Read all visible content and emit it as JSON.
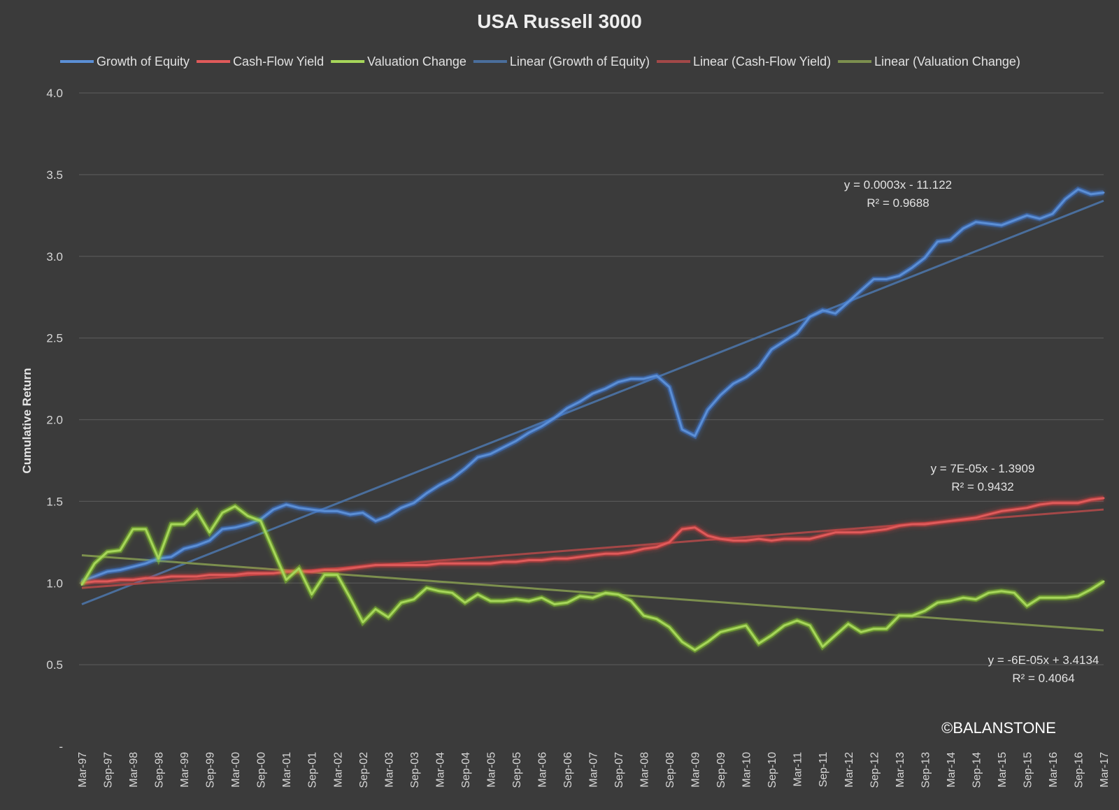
{
  "chart_data": {
    "type": "line",
    "title": "USA Russell 3000",
    "ylabel": "Cumulative Return",
    "xlabel": "",
    "ylim": [
      0,
      4
    ],
    "yticks": [
      {
        "value": 0,
        "label": "-"
      },
      {
        "value": 0.5,
        "label": "0.5"
      },
      {
        "value": 1.0,
        "label": "1.0"
      },
      {
        "value": 1.5,
        "label": "1.5"
      },
      {
        "value": 2.0,
        "label": "2.0"
      },
      {
        "value": 2.5,
        "label": "2.5"
      },
      {
        "value": 3.0,
        "label": "3.0"
      },
      {
        "value": 3.5,
        "label": "3.5"
      },
      {
        "value": 4.0,
        "label": "4.0"
      }
    ],
    "grid": true,
    "legend_position": "top",
    "x_tick_labels": [
      "Mar-97",
      "Sep-97",
      "Mar-98",
      "Sep-98",
      "Mar-99",
      "Sep-99",
      "Mar-00",
      "Sep-00",
      "Mar-01",
      "Sep-01",
      "Mar-02",
      "Sep-02",
      "Mar-03",
      "Sep-03",
      "Mar-04",
      "Sep-04",
      "Mar-05",
      "Sep-05",
      "Mar-06",
      "Sep-06",
      "Mar-07",
      "Sep-07",
      "Mar-08",
      "Sep-08",
      "Mar-09",
      "Sep-09",
      "Mar-10",
      "Sep-10",
      "Mar-11",
      "Sep-11",
      "Mar-12",
      "Sep-12",
      "Mar-13",
      "Sep-13",
      "Mar-14",
      "Sep-14",
      "Mar-15",
      "Sep-15",
      "Mar-16",
      "Sep-16",
      "Mar-17"
    ],
    "x_quarters": [
      "Mar-97",
      "Jun-97",
      "Sep-97",
      "Dec-97",
      "Mar-98",
      "Jun-98",
      "Sep-98",
      "Dec-98",
      "Mar-99",
      "Jun-99",
      "Sep-99",
      "Dec-99",
      "Mar-00",
      "Jun-00",
      "Sep-00",
      "Dec-00",
      "Mar-01",
      "Jun-01",
      "Sep-01",
      "Dec-01",
      "Mar-02",
      "Jun-02",
      "Sep-02",
      "Dec-02",
      "Mar-03",
      "Jun-03",
      "Sep-03",
      "Dec-03",
      "Mar-04",
      "Jun-04",
      "Sep-04",
      "Dec-04",
      "Mar-05",
      "Jun-05",
      "Sep-05",
      "Dec-05",
      "Mar-06",
      "Jun-06",
      "Sep-06",
      "Dec-06",
      "Mar-07",
      "Jun-07",
      "Sep-07",
      "Dec-07",
      "Mar-08",
      "Jun-08",
      "Sep-08",
      "Dec-08",
      "Mar-09",
      "Jun-09",
      "Sep-09",
      "Dec-09",
      "Mar-10",
      "Jun-10",
      "Sep-10",
      "Dec-10",
      "Mar-11",
      "Jun-11",
      "Sep-11",
      "Dec-11",
      "Mar-12",
      "Jun-12",
      "Sep-12",
      "Dec-12",
      "Mar-13",
      "Jun-13",
      "Sep-13",
      "Dec-13",
      "Mar-14",
      "Jun-14",
      "Sep-14",
      "Dec-14",
      "Mar-15",
      "Jun-15",
      "Sep-15",
      "Dec-15",
      "Mar-16",
      "Jun-16",
      "Sep-16",
      "Dec-16",
      "Mar-17"
    ],
    "series": [
      {
        "name": "Growth of Equity",
        "color": "#5b8fd6",
        "glow": "#3f7fe0",
        "values": [
          1.01,
          1.04,
          1.07,
          1.08,
          1.1,
          1.12,
          1.15,
          1.16,
          1.21,
          1.23,
          1.26,
          1.33,
          1.34,
          1.36,
          1.39,
          1.45,
          1.48,
          1.46,
          1.45,
          1.44,
          1.44,
          1.42,
          1.43,
          1.38,
          1.41,
          1.46,
          1.49,
          1.55,
          1.6,
          1.64,
          1.7,
          1.77,
          1.79,
          1.83,
          1.87,
          1.92,
          1.96,
          2.01,
          2.07,
          2.11,
          2.16,
          2.19,
          2.23,
          2.25,
          2.25,
          2.27,
          2.2,
          1.94,
          1.9,
          2.06,
          2.15,
          2.22,
          2.26,
          2.32,
          2.43,
          2.48,
          2.53,
          2.63,
          2.67,
          2.65,
          2.72,
          2.79,
          2.86,
          2.86,
          2.88,
          2.93,
          2.99,
          3.09,
          3.1,
          3.17,
          3.21,
          3.2,
          3.19,
          3.22,
          3.25,
          3.23,
          3.26,
          3.35,
          3.41,
          3.38,
          3.39
        ]
      },
      {
        "name": "Cash-Flow Yield",
        "color": "#e05a5a",
        "glow": "#d43d3d",
        "values": [
          1.0,
          1.01,
          1.01,
          1.02,
          1.02,
          1.03,
          1.03,
          1.04,
          1.04,
          1.04,
          1.05,
          1.05,
          1.05,
          1.06,
          1.06,
          1.06,
          1.07,
          1.07,
          1.07,
          1.08,
          1.08,
          1.09,
          1.1,
          1.11,
          1.11,
          1.11,
          1.11,
          1.11,
          1.12,
          1.12,
          1.12,
          1.12,
          1.12,
          1.13,
          1.13,
          1.14,
          1.14,
          1.15,
          1.15,
          1.16,
          1.17,
          1.18,
          1.18,
          1.19,
          1.21,
          1.22,
          1.25,
          1.33,
          1.34,
          1.29,
          1.27,
          1.26,
          1.26,
          1.27,
          1.26,
          1.27,
          1.27,
          1.27,
          1.29,
          1.31,
          1.31,
          1.31,
          1.32,
          1.33,
          1.35,
          1.36,
          1.36,
          1.37,
          1.38,
          1.39,
          1.4,
          1.42,
          1.44,
          1.45,
          1.46,
          1.48,
          1.49,
          1.49,
          1.49,
          1.51,
          1.52
        ]
      },
      {
        "name": "Valuation Change",
        "color": "#a6d65a",
        "glow": "#8bd02e",
        "values": [
          0.99,
          1.12,
          1.19,
          1.2,
          1.33,
          1.33,
          1.15,
          1.36,
          1.36,
          1.44,
          1.31,
          1.43,
          1.47,
          1.41,
          1.38,
          1.2,
          1.02,
          1.09,
          0.93,
          1.05,
          1.05,
          0.91,
          0.76,
          0.84,
          0.79,
          0.88,
          0.9,
          0.97,
          0.95,
          0.94,
          0.88,
          0.93,
          0.89,
          0.89,
          0.9,
          0.89,
          0.91,
          0.87,
          0.88,
          0.92,
          0.91,
          0.94,
          0.93,
          0.89,
          0.8,
          0.78,
          0.73,
          0.64,
          0.59,
          0.64,
          0.7,
          0.72,
          0.74,
          0.63,
          0.68,
          0.74,
          0.77,
          0.74,
          0.61,
          0.68,
          0.75,
          0.7,
          0.72,
          0.72,
          0.8,
          0.8,
          0.83,
          0.88,
          0.89,
          0.91,
          0.9,
          0.94,
          0.95,
          0.94,
          0.86,
          0.91,
          0.91,
          0.91,
          0.92,
          0.96,
          1.01
        ]
      }
    ],
    "trendlines": [
      {
        "name": "Linear (Growth of Equity)",
        "color": "#4a6e9c",
        "start": 0.87,
        "end": 3.34,
        "equation": "y = 0.0003x - 11.122",
        "r2": "R² = 0.9688"
      },
      {
        "name": "Linear (Cash-Flow Yield)",
        "color": "#a34848",
        "start": 0.97,
        "end": 1.45,
        "equation": "y = 7E-05x - 1.3909",
        "r2": "R² = 0.9432"
      },
      {
        "name": "Linear (Valuation Change)",
        "color": "#7c8f4e",
        "start": 1.17,
        "end": 0.71,
        "equation": "y = -6E-05x + 3.4134",
        "r2": "R² = 0.4064"
      }
    ],
    "annotation": "©BALANSTONE"
  }
}
